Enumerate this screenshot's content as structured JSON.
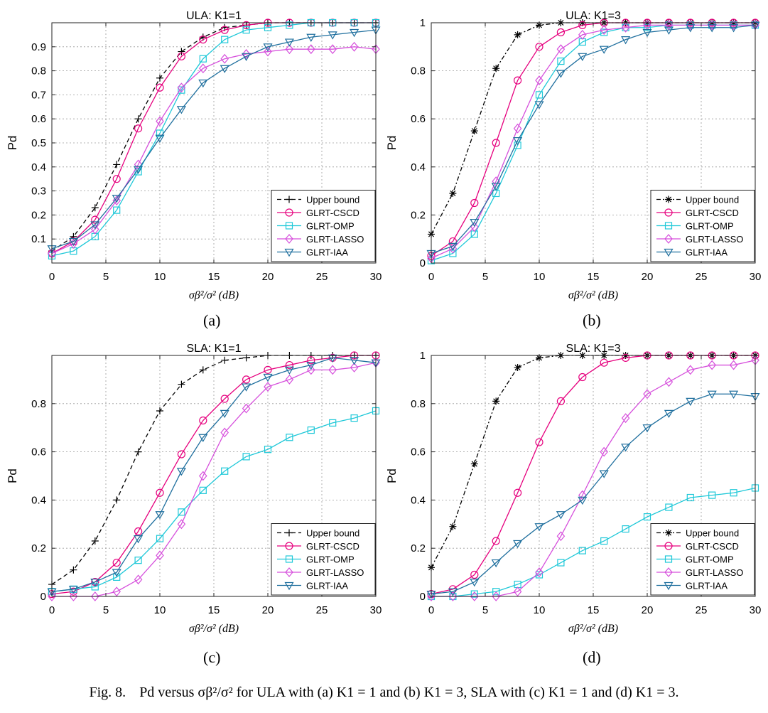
{
  "panel_labels": [
    "(a)",
    "(b)",
    "(c)",
    "(d)"
  ],
  "caption": {
    "fig_label": "Fig. 8.",
    "text": "Pd versus σβ²/σ² for ULA with (a) K1 = 1 and (b) K1 = 3, SLA with (c) K1 = 1 and (d) K1 = 3."
  },
  "chart_data": [
    {
      "type": "line",
      "title": "ULA: K1=1",
      "xlabel": "σβ²/σ² (dB)",
      "ylabel": "Pd",
      "xlim": [
        0,
        30
      ],
      "ylim": [
        0,
        1
      ],
      "xticks": [
        0,
        5,
        10,
        15,
        20,
        25,
        30
      ],
      "yticks": [
        0.1,
        0.2,
        0.3,
        0.4,
        0.5,
        0.6,
        0.7,
        0.8,
        0.9
      ],
      "ytick_labels": [
        "0.1",
        "0.2",
        "0.3",
        "0.4",
        "0.5",
        "0.6",
        "0.7",
        "0.8",
        "0.9"
      ],
      "grid": true,
      "legend_position": "bottom-right",
      "x": [
        0,
        2,
        4,
        6,
        8,
        10,
        12,
        14,
        16,
        18,
        20,
        22,
        24,
        26,
        28,
        30
      ],
      "series": [
        {
          "name": "Upper bound",
          "color": "#000000",
          "dash": "6,4",
          "marker": "plus",
          "values": [
            0.05,
            0.11,
            0.23,
            0.41,
            0.6,
            0.77,
            0.88,
            0.94,
            0.98,
            0.99,
            1.0,
            1.0,
            1.0,
            1.0,
            1.0,
            1.0
          ]
        },
        {
          "name": "GLRT-CSCD",
          "color": "#e6007e",
          "dash": "",
          "marker": "circle",
          "values": [
            0.04,
            0.09,
            0.18,
            0.35,
            0.56,
            0.73,
            0.86,
            0.93,
            0.97,
            0.99,
            1.0,
            1.0,
            1.0,
            1.0,
            1.0,
            1.0
          ]
        },
        {
          "name": "GLRT-OMP",
          "color": "#1ec8d8",
          "dash": "",
          "marker": "square",
          "values": [
            0.03,
            0.05,
            0.11,
            0.22,
            0.38,
            0.54,
            0.72,
            0.85,
            0.93,
            0.97,
            0.98,
            0.99,
            1.0,
            1.0,
            1.0,
            1.0
          ]
        },
        {
          "name": "GLRT-LASSO",
          "color": "#d64fdc",
          "dash": "",
          "marker": "diamond",
          "values": [
            0.04,
            0.08,
            0.14,
            0.26,
            0.41,
            0.59,
            0.73,
            0.81,
            0.85,
            0.87,
            0.88,
            0.89,
            0.89,
            0.89,
            0.9,
            0.89
          ]
        },
        {
          "name": "GLRT-IAA",
          "color": "#1f6f9e",
          "dash": "",
          "marker": "triangle",
          "values": [
            0.06,
            0.09,
            0.16,
            0.27,
            0.39,
            0.52,
            0.64,
            0.75,
            0.81,
            0.86,
            0.9,
            0.92,
            0.94,
            0.95,
            0.96,
            0.97
          ]
        }
      ]
    },
    {
      "type": "line",
      "title": "ULA: K1=3",
      "xlabel": "σβ²/σ² (dB)",
      "ylabel": "Pd",
      "xlim": [
        0,
        30
      ],
      "ylim": [
        0,
        1
      ],
      "xticks": [
        0,
        5,
        10,
        15,
        20,
        25,
        30
      ],
      "yticks": [
        0,
        0.2,
        0.4,
        0.6,
        0.8,
        1
      ],
      "ytick_labels": [
        "0",
        "0.2",
        "0.4",
        "0.6",
        "0.8",
        "1"
      ],
      "grid": true,
      "legend_position": "bottom-right",
      "x": [
        0,
        2,
        4,
        6,
        8,
        10,
        12,
        14,
        16,
        18,
        20,
        22,
        24,
        26,
        28,
        30
      ],
      "series": [
        {
          "name": "Upper bound",
          "color": "#000000",
          "dash": "6,3,2,3",
          "marker": "star",
          "values": [
            0.12,
            0.29,
            0.55,
            0.81,
            0.95,
            0.99,
            1.0,
            1.0,
            1.0,
            1.0,
            1.0,
            1.0,
            1.0,
            1.0,
            1.0,
            1.0
          ]
        },
        {
          "name": "GLRT-CSCD",
          "color": "#e6007e",
          "dash": "",
          "marker": "circle",
          "values": [
            0.03,
            0.09,
            0.25,
            0.5,
            0.76,
            0.9,
            0.96,
            0.99,
            1.0,
            1.0,
            1.0,
            1.0,
            1.0,
            1.0,
            1.0,
            1.0
          ]
        },
        {
          "name": "GLRT-OMP",
          "color": "#1ec8d8",
          "dash": "",
          "marker": "square",
          "values": [
            0.01,
            0.04,
            0.12,
            0.29,
            0.49,
            0.7,
            0.84,
            0.92,
            0.96,
            0.98,
            0.98,
            0.99,
            0.99,
            0.99,
            0.99,
            0.99
          ]
        },
        {
          "name": "GLRT-LASSO",
          "color": "#d64fdc",
          "dash": "",
          "marker": "diamond",
          "values": [
            0.02,
            0.06,
            0.15,
            0.34,
            0.56,
            0.76,
            0.89,
            0.95,
            0.97,
            0.98,
            0.99,
            0.99,
            0.99,
            0.99,
            0.99,
            0.99
          ]
        },
        {
          "name": "GLRT-IAA",
          "color": "#1f6f9e",
          "dash": "",
          "marker": "triangle",
          "values": [
            0.04,
            0.07,
            0.17,
            0.32,
            0.51,
            0.66,
            0.79,
            0.86,
            0.89,
            0.93,
            0.96,
            0.97,
            0.98,
            0.98,
            0.98,
            0.99
          ]
        }
      ]
    },
    {
      "type": "line",
      "title": "SLA: K1=1",
      "xlabel": "σβ²/σ² (dB)",
      "ylabel": "Pd",
      "xlim": [
        0,
        30
      ],
      "ylim": [
        0,
        1
      ],
      "xticks": [
        0,
        5,
        10,
        15,
        20,
        25,
        30
      ],
      "yticks": [
        0,
        0.2,
        0.4,
        0.6,
        0.8
      ],
      "ytick_labels": [
        "0",
        "0.2",
        "0.4",
        "0.6",
        "0.8"
      ],
      "grid": true,
      "legend_position": "bottom-right",
      "x": [
        0,
        2,
        4,
        6,
        8,
        10,
        12,
        14,
        16,
        18,
        20,
        22,
        24,
        26,
        28,
        30
      ],
      "series": [
        {
          "name": "Upper bound",
          "color": "#000000",
          "dash": "6,4",
          "marker": "plus",
          "values": [
            0.05,
            0.11,
            0.23,
            0.4,
            0.6,
            0.77,
            0.88,
            0.94,
            0.98,
            0.99,
            1.0,
            1.0,
            1.0,
            1.0,
            1.0,
            1.0
          ]
        },
        {
          "name": "GLRT-CSCD",
          "color": "#e6007e",
          "dash": "",
          "marker": "circle",
          "values": [
            0.01,
            0.02,
            0.06,
            0.14,
            0.27,
            0.43,
            0.59,
            0.73,
            0.82,
            0.9,
            0.94,
            0.96,
            0.98,
            0.99,
            1.0,
            1.0
          ]
        },
        {
          "name": "GLRT-OMP",
          "color": "#1ec8d8",
          "dash": "",
          "marker": "square",
          "values": [
            0.02,
            0.03,
            0.04,
            0.08,
            0.15,
            0.24,
            0.35,
            0.44,
            0.52,
            0.58,
            0.61,
            0.66,
            0.69,
            0.72,
            0.74,
            0.77
          ]
        },
        {
          "name": "GLRT-LASSO",
          "color": "#d64fdc",
          "dash": "",
          "marker": "diamond",
          "values": [
            0.0,
            0.0,
            0.0,
            0.02,
            0.07,
            0.17,
            0.3,
            0.5,
            0.68,
            0.78,
            0.87,
            0.9,
            0.94,
            0.94,
            0.95,
            0.97
          ]
        },
        {
          "name": "GLRT-IAA",
          "color": "#1f6f9e",
          "dash": "",
          "marker": "triangle",
          "values": [
            0.02,
            0.03,
            0.06,
            0.1,
            0.24,
            0.34,
            0.52,
            0.66,
            0.76,
            0.87,
            0.91,
            0.94,
            0.96,
            0.99,
            0.98,
            0.97
          ]
        }
      ]
    },
    {
      "type": "line",
      "title": "SLA: K1=3",
      "xlabel": "σβ²/σ² (dB)",
      "ylabel": "Pd",
      "xlim": [
        0,
        30
      ],
      "ylim": [
        0,
        1
      ],
      "xticks": [
        0,
        5,
        10,
        15,
        20,
        25,
        30
      ],
      "yticks": [
        0,
        0.2,
        0.4,
        0.6,
        0.8,
        1
      ],
      "ytick_labels": [
        "0",
        "0.2",
        "0.4",
        "0.6",
        "0.8",
        "1"
      ],
      "grid": true,
      "legend_position": "bottom-right",
      "x": [
        0,
        2,
        4,
        6,
        8,
        10,
        12,
        14,
        16,
        18,
        20,
        22,
        24,
        26,
        28,
        30
      ],
      "series": [
        {
          "name": "Upper bound",
          "color": "#000000",
          "dash": "6,3,2,3",
          "marker": "star",
          "values": [
            0.12,
            0.29,
            0.55,
            0.81,
            0.95,
            0.99,
            1.0,
            1.0,
            1.0,
            1.0,
            1.0,
            1.0,
            1.0,
            1.0,
            1.0,
            1.0
          ]
        },
        {
          "name": "GLRT-CSCD",
          "color": "#e6007e",
          "dash": "",
          "marker": "circle",
          "values": [
            0.01,
            0.03,
            0.09,
            0.23,
            0.43,
            0.64,
            0.81,
            0.91,
            0.97,
            0.99,
            1.0,
            1.0,
            1.0,
            1.0,
            1.0,
            1.0
          ]
        },
        {
          "name": "GLRT-OMP",
          "color": "#1ec8d8",
          "dash": "",
          "marker": "square",
          "values": [
            0.0,
            0.0,
            0.01,
            0.02,
            0.05,
            0.09,
            0.14,
            0.19,
            0.23,
            0.28,
            0.33,
            0.37,
            0.41,
            0.42,
            0.43,
            0.45
          ]
        },
        {
          "name": "GLRT-LASSO",
          "color": "#d64fdc",
          "dash": "",
          "marker": "diamond",
          "values": [
            0.0,
            0.0,
            0.0,
            0.0,
            0.02,
            0.1,
            0.25,
            0.42,
            0.6,
            0.74,
            0.84,
            0.89,
            0.94,
            0.96,
            0.96,
            0.98
          ]
        },
        {
          "name": "GLRT-IAA",
          "color": "#1f6f9e",
          "dash": "",
          "marker": "triangle",
          "values": [
            0.01,
            0.02,
            0.06,
            0.14,
            0.22,
            0.29,
            0.34,
            0.4,
            0.51,
            0.62,
            0.7,
            0.76,
            0.81,
            0.84,
            0.84,
            0.83
          ]
        }
      ]
    }
  ]
}
